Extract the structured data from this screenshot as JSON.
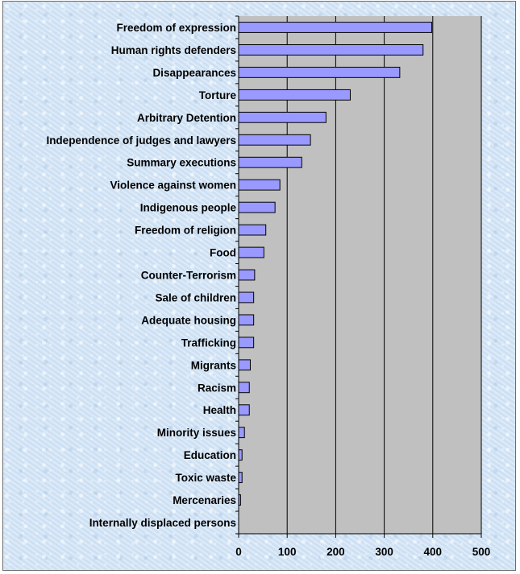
{
  "chart_data": {
    "type": "bar",
    "orientation": "horizontal",
    "title": "",
    "xlabel": "",
    "ylabel": "",
    "xlim": [
      0,
      500
    ],
    "x_ticks": [
      "0",
      "100",
      "200",
      "300",
      "400",
      "500"
    ],
    "grid": "vertical major gridlines",
    "legend": "none",
    "categories": [
      "Freedom of expression",
      "Human rights defenders",
      "Disappearances",
      "Torture",
      "Arbitrary Detention",
      "Independence of judges and lawyers",
      "Summary executions",
      "Violence against women",
      "Indigenous people",
      "Freedom of religion",
      "Food",
      "Counter-Terrorism",
      "Sale of children",
      "Adequate housing",
      "Trafficking",
      "Migrants",
      "Racism",
      "Health",
      "Minority issues",
      "Education",
      "Toxic waste",
      "Mercenaries",
      "Internally displaced persons"
    ],
    "values": [
      398,
      380,
      332,
      230,
      180,
      148,
      130,
      85,
      75,
      56,
      52,
      33,
      31,
      31,
      31,
      24,
      22,
      22,
      12,
      7,
      7,
      4,
      0
    ],
    "colors": {
      "bar_fill": "#9999ff",
      "bar_stroke": "#000000",
      "plot_background": "#c0c0c0",
      "gridline": "#000000"
    }
  }
}
